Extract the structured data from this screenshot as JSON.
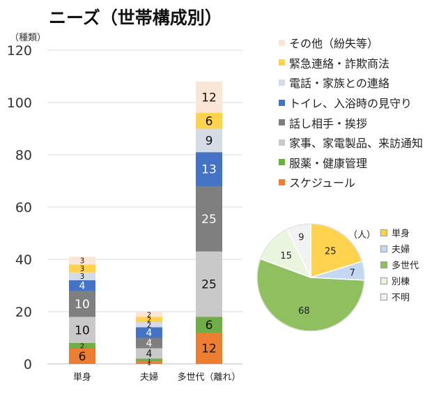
{
  "chart_data": [
    {
      "type": "bar",
      "stacked": true,
      "title": "ニーズ（世帯構成別）",
      "ylabel": "（種類）",
      "ylim": [
        0,
        120
      ],
      "yticks": [
        0,
        20,
        40,
        60,
        80,
        100,
        120
      ],
      "grid": true,
      "legend_position": "right",
      "categories": [
        "単身",
        "夫婦",
        "多世代（離れ）"
      ],
      "series": [
        {
          "name": "スケジュール",
          "color": "#ED7D31",
          "values": [
            6,
            1,
            12
          ]
        },
        {
          "name": "服薬・健康管理",
          "color": "#70AD47",
          "values": [
            2,
            1,
            6
          ]
        },
        {
          "name": "家事、家電製品、来訪通知",
          "color": "#C9C9C9",
          "values": [
            10,
            4,
            25
          ]
        },
        {
          "name": "話し相手・挨拶",
          "color": "#7F7F7F",
          "values": [
            10,
            4,
            25
          ]
        },
        {
          "name": "トイレ、入浴時の見守り",
          "color": "#4472C4",
          "values": [
            4,
            4,
            13
          ]
        },
        {
          "name": "電話・家族との連絡",
          "color": "#D6DCE5",
          "values": [
            3,
            2,
            9
          ]
        },
        {
          "name": "緊急連絡・詐欺商法",
          "color": "#FFD34E",
          "values": [
            3,
            2,
            6
          ]
        },
        {
          "name": "その他（紛失等）",
          "color": "#FBE5D6",
          "values": [
            3,
            2,
            12
          ]
        }
      ]
    },
    {
      "type": "pie",
      "unit_label": "（人）",
      "slices": [
        {
          "name": "単身",
          "value": 25,
          "color": "#FFD34E"
        },
        {
          "name": "夫婦",
          "value": 7,
          "color": "#C5D7F2"
        },
        {
          "name": "多世代",
          "value": 68,
          "color": "#8FBF5F"
        },
        {
          "name": "別棟",
          "value": 15,
          "color": "#E9F5DF"
        },
        {
          "name": "不明",
          "value": 9,
          "color": "#F2F2F2"
        }
      ]
    }
  ]
}
